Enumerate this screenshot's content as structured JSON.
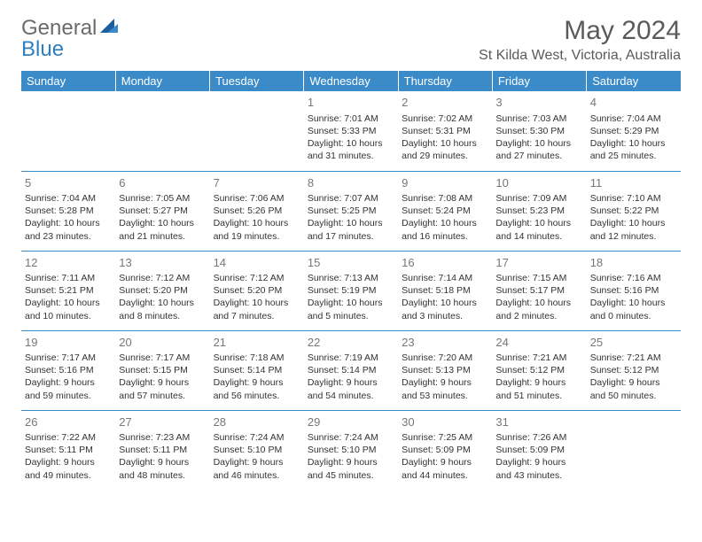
{
  "logo": {
    "text1": "General",
    "text2": "Blue"
  },
  "title": "May 2024",
  "location": "St Kilda West, Victoria, Australia",
  "colors": {
    "header_bg": "#3b8bc9",
    "header_fg": "#ffffff",
    "border": "#3b8bc9",
    "daynum": "#777777",
    "text": "#333333",
    "logo_gray": "#6b6b6b",
    "logo_blue": "#2f7fbf",
    "background": "#ffffff"
  },
  "weekdays": [
    "Sunday",
    "Monday",
    "Tuesday",
    "Wednesday",
    "Thursday",
    "Friday",
    "Saturday"
  ],
  "weeks": [
    [
      null,
      null,
      null,
      {
        "n": "1",
        "sr": "7:01 AM",
        "ss": "5:33 PM",
        "dl": "10 hours and 31 minutes."
      },
      {
        "n": "2",
        "sr": "7:02 AM",
        "ss": "5:31 PM",
        "dl": "10 hours and 29 minutes."
      },
      {
        "n": "3",
        "sr": "7:03 AM",
        "ss": "5:30 PM",
        "dl": "10 hours and 27 minutes."
      },
      {
        "n": "4",
        "sr": "7:04 AM",
        "ss": "5:29 PM",
        "dl": "10 hours and 25 minutes."
      }
    ],
    [
      {
        "n": "5",
        "sr": "7:04 AM",
        "ss": "5:28 PM",
        "dl": "10 hours and 23 minutes."
      },
      {
        "n": "6",
        "sr": "7:05 AM",
        "ss": "5:27 PM",
        "dl": "10 hours and 21 minutes."
      },
      {
        "n": "7",
        "sr": "7:06 AM",
        "ss": "5:26 PM",
        "dl": "10 hours and 19 minutes."
      },
      {
        "n": "8",
        "sr": "7:07 AM",
        "ss": "5:25 PM",
        "dl": "10 hours and 17 minutes."
      },
      {
        "n": "9",
        "sr": "7:08 AM",
        "ss": "5:24 PM",
        "dl": "10 hours and 16 minutes."
      },
      {
        "n": "10",
        "sr": "7:09 AM",
        "ss": "5:23 PM",
        "dl": "10 hours and 14 minutes."
      },
      {
        "n": "11",
        "sr": "7:10 AM",
        "ss": "5:22 PM",
        "dl": "10 hours and 12 minutes."
      }
    ],
    [
      {
        "n": "12",
        "sr": "7:11 AM",
        "ss": "5:21 PM",
        "dl": "10 hours and 10 minutes."
      },
      {
        "n": "13",
        "sr": "7:12 AM",
        "ss": "5:20 PM",
        "dl": "10 hours and 8 minutes."
      },
      {
        "n": "14",
        "sr": "7:12 AM",
        "ss": "5:20 PM",
        "dl": "10 hours and 7 minutes."
      },
      {
        "n": "15",
        "sr": "7:13 AM",
        "ss": "5:19 PM",
        "dl": "10 hours and 5 minutes."
      },
      {
        "n": "16",
        "sr": "7:14 AM",
        "ss": "5:18 PM",
        "dl": "10 hours and 3 minutes."
      },
      {
        "n": "17",
        "sr": "7:15 AM",
        "ss": "5:17 PM",
        "dl": "10 hours and 2 minutes."
      },
      {
        "n": "18",
        "sr": "7:16 AM",
        "ss": "5:16 PM",
        "dl": "10 hours and 0 minutes."
      }
    ],
    [
      {
        "n": "19",
        "sr": "7:17 AM",
        "ss": "5:16 PM",
        "dl": "9 hours and 59 minutes."
      },
      {
        "n": "20",
        "sr": "7:17 AM",
        "ss": "5:15 PM",
        "dl": "9 hours and 57 minutes."
      },
      {
        "n": "21",
        "sr": "7:18 AM",
        "ss": "5:14 PM",
        "dl": "9 hours and 56 minutes."
      },
      {
        "n": "22",
        "sr": "7:19 AM",
        "ss": "5:14 PM",
        "dl": "9 hours and 54 minutes."
      },
      {
        "n": "23",
        "sr": "7:20 AM",
        "ss": "5:13 PM",
        "dl": "9 hours and 53 minutes."
      },
      {
        "n": "24",
        "sr": "7:21 AM",
        "ss": "5:12 PM",
        "dl": "9 hours and 51 minutes."
      },
      {
        "n": "25",
        "sr": "7:21 AM",
        "ss": "5:12 PM",
        "dl": "9 hours and 50 minutes."
      }
    ],
    [
      {
        "n": "26",
        "sr": "7:22 AM",
        "ss": "5:11 PM",
        "dl": "9 hours and 49 minutes."
      },
      {
        "n": "27",
        "sr": "7:23 AM",
        "ss": "5:11 PM",
        "dl": "9 hours and 48 minutes."
      },
      {
        "n": "28",
        "sr": "7:24 AM",
        "ss": "5:10 PM",
        "dl": "9 hours and 46 minutes."
      },
      {
        "n": "29",
        "sr": "7:24 AM",
        "ss": "5:10 PM",
        "dl": "9 hours and 45 minutes."
      },
      {
        "n": "30",
        "sr": "7:25 AM",
        "ss": "5:09 PM",
        "dl": "9 hours and 44 minutes."
      },
      {
        "n": "31",
        "sr": "7:26 AM",
        "ss": "5:09 PM",
        "dl": "9 hours and 43 minutes."
      },
      null
    ]
  ],
  "labels": {
    "sunrise": "Sunrise: ",
    "sunset": "Sunset: ",
    "daylight": "Daylight: "
  }
}
